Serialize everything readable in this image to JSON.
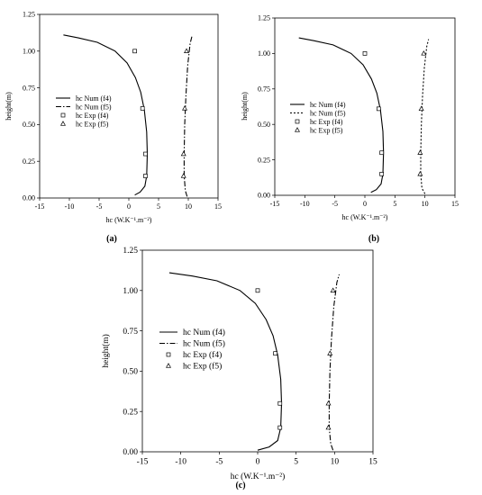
{
  "chart_data": [
    {
      "panel_label": "(a)",
      "type": "scatter",
      "xlabel": "hc (W.K⁻¹.m⁻²)",
      "ylabel": "height(m)",
      "xlim": [
        -15,
        15
      ],
      "ylim": [
        0,
        1.25
      ],
      "xticks": [
        "-15",
        "-10",
        "-5",
        "0",
        "5",
        "10",
        "15"
      ],
      "yticks": [
        "0.00",
        "0.25",
        "0.50",
        "0.75",
        "1.00",
        "1.25"
      ],
      "grid": false,
      "legend_position": "middle-left",
      "series": [
        {
          "name": "hc Num (f4)",
          "kind": "line",
          "style": "solid",
          "x": [
            1.0,
            1.9,
            2.7,
            3.0,
            3.1,
            3.0,
            2.6,
            2.0,
            1.1,
            -0.3,
            -2.3,
            -5.3,
            -8.5,
            -11.0
          ],
          "y": [
            0.02,
            0.04,
            0.08,
            0.15,
            0.3,
            0.45,
            0.6,
            0.72,
            0.82,
            0.92,
            1.0,
            1.06,
            1.09,
            1.11
          ]
        },
        {
          "name": "hc Num (f5)",
          "kind": "line",
          "style": "dashdot",
          "x": [
            9.8,
            9.5,
            9.3,
            9.3,
            9.4,
            9.6,
            9.9,
            10.3,
            10.6
          ],
          "y": [
            0.01,
            0.05,
            0.15,
            0.3,
            0.5,
            0.7,
            0.9,
            1.05,
            1.1
          ]
        },
        {
          "name": "hc Exp (f4)",
          "kind": "points",
          "marker": "square",
          "x": [
            1.0,
            2.3,
            2.8,
            2.8
          ],
          "y": [
            1.0,
            0.61,
            0.3,
            0.15
          ]
        },
        {
          "name": "hc Exp (f5)",
          "kind": "points",
          "marker": "triangle",
          "x": [
            9.7,
            9.4,
            9.2,
            9.2
          ],
          "y": [
            1.0,
            0.61,
            0.3,
            0.15
          ]
        }
      ]
    },
    {
      "panel_label": "(b)",
      "type": "scatter",
      "xlabel": "hc (W.K⁻¹.m⁻²)",
      "ylabel": "height(m)",
      "xlim": [
        -15,
        15
      ],
      "ylim": [
        0,
        1.25
      ],
      "xticks": [
        "-15",
        "-10",
        "-5",
        "0",
        "5",
        "10",
        "15"
      ],
      "yticks": [
        "0.00",
        "0.25",
        "0.50",
        "0.75",
        "1.00",
        "1.25"
      ],
      "grid": false,
      "legend_position": "middle-left",
      "series": [
        {
          "name": "hc Num (f4)",
          "kind": "line",
          "style": "solid",
          "x": [
            1.0,
            1.9,
            2.7,
            3.0,
            3.1,
            3.0,
            2.6,
            2.0,
            1.1,
            -0.3,
            -2.3,
            -5.3,
            -8.5,
            -11.0
          ],
          "y": [
            0.02,
            0.04,
            0.08,
            0.15,
            0.3,
            0.45,
            0.6,
            0.72,
            0.82,
            0.92,
            1.0,
            1.06,
            1.09,
            1.11
          ]
        },
        {
          "name": "hc Num (f5)",
          "kind": "line",
          "style": "dotted",
          "x": [
            10.0,
            9.5,
            9.3,
            9.3,
            9.4,
            9.6,
            9.9,
            10.3,
            10.6
          ],
          "y": [
            0.01,
            0.05,
            0.15,
            0.3,
            0.5,
            0.7,
            0.9,
            1.05,
            1.1
          ]
        },
        {
          "name": "hc Exp (f4)",
          "kind": "points",
          "marker": "square",
          "x": [
            0.0,
            2.3,
            2.8,
            2.8
          ],
          "y": [
            1.0,
            0.61,
            0.3,
            0.15
          ]
        },
        {
          "name": "hc Exp (f5)",
          "kind": "points",
          "marker": "triangle",
          "x": [
            9.8,
            9.4,
            9.2,
            9.2
          ],
          "y": [
            1.0,
            0.61,
            0.3,
            0.15
          ]
        }
      ]
    },
    {
      "panel_label": "(c)",
      "type": "scatter",
      "xlabel": "hc (W.K⁻¹.m⁻²)",
      "ylabel": "height(m)",
      "xlim": [
        -15,
        15
      ],
      "ylim": [
        0,
        1.25
      ],
      "xticks": [
        "-15",
        "-10",
        "-5",
        "0",
        "5",
        "10",
        "15"
      ],
      "yticks": [
        "0.00",
        "0.25",
        "0.50",
        "0.75",
        "1.00",
        "1.25"
      ],
      "grid": false,
      "legend_position": "middle-left",
      "series": [
        {
          "name": "hc Num (f4)",
          "kind": "line",
          "style": "solid",
          "x": [
            0.0,
            1.5,
            2.6,
            3.0,
            3.1,
            3.0,
            2.6,
            2.0,
            1.1,
            -0.3,
            -2.3,
            -5.3,
            -8.5,
            -11.5
          ],
          "y": [
            0.01,
            0.03,
            0.07,
            0.15,
            0.3,
            0.45,
            0.6,
            0.72,
            0.82,
            0.92,
            1.0,
            1.06,
            1.09,
            1.11
          ]
        },
        {
          "name": "hc Num (f5)",
          "kind": "line",
          "style": "dashdot",
          "x": [
            9.8,
            9.5,
            9.3,
            9.3,
            9.4,
            9.6,
            9.9,
            10.3,
            10.6
          ],
          "y": [
            0.01,
            0.05,
            0.15,
            0.3,
            0.5,
            0.7,
            0.9,
            1.05,
            1.1
          ]
        },
        {
          "name": "hc Exp (f4)",
          "kind": "points",
          "marker": "square",
          "x": [
            0.0,
            2.3,
            2.9,
            2.9
          ],
          "y": [
            1.0,
            0.61,
            0.3,
            0.15
          ]
        },
        {
          "name": "hc Exp (f5)",
          "kind": "points",
          "marker": "triangle",
          "x": [
            9.8,
            9.4,
            9.2,
            9.2
          ],
          "y": [
            1.0,
            0.61,
            0.3,
            0.15
          ]
        }
      ]
    }
  ]
}
